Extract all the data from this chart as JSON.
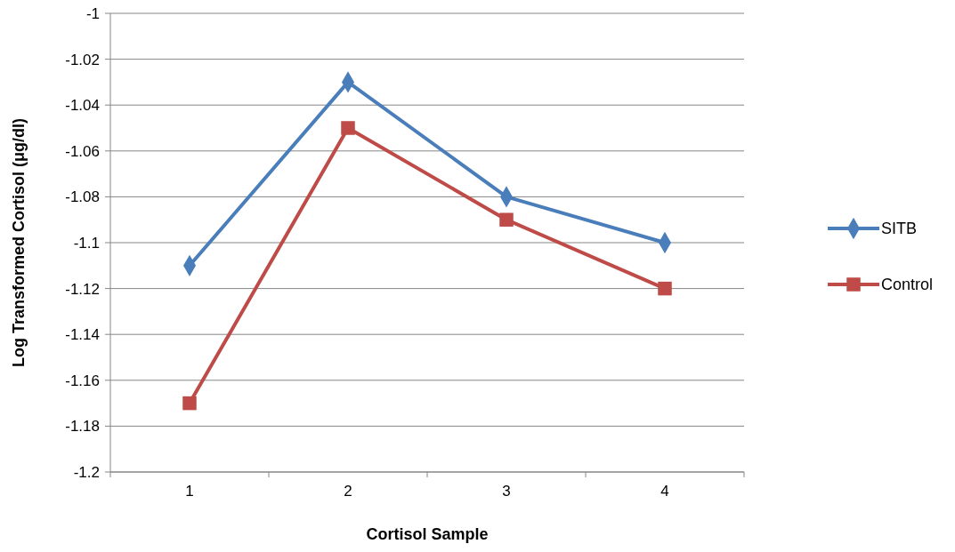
{
  "chart_data": {
    "type": "line",
    "xlabel": "Cortisol Sample",
    "ylabel": "Log Transformed Cortisol (μg/dl)",
    "categories": [
      "1",
      "2",
      "3",
      "4"
    ],
    "series": [
      {
        "name": "SITB",
        "color": "#4a7ebb",
        "values": [
          -1.11,
          -1.03,
          -1.08,
          -1.1
        ],
        "marker": "diamond"
      },
      {
        "name": "Control",
        "color": "#be4b48",
        "values": [
          -1.17,
          -1.05,
          -1.09,
          -1.12
        ],
        "marker": "square"
      }
    ],
    "ylim": [
      -1.2,
      -1
    ],
    "yticks": [
      -1.2,
      -1.18,
      -1.16,
      -1.14,
      -1.12,
      -1.1,
      -1.08,
      -1.06,
      -1.04,
      -1.02,
      -1
    ],
    "grid": "y",
    "legend": "right"
  }
}
